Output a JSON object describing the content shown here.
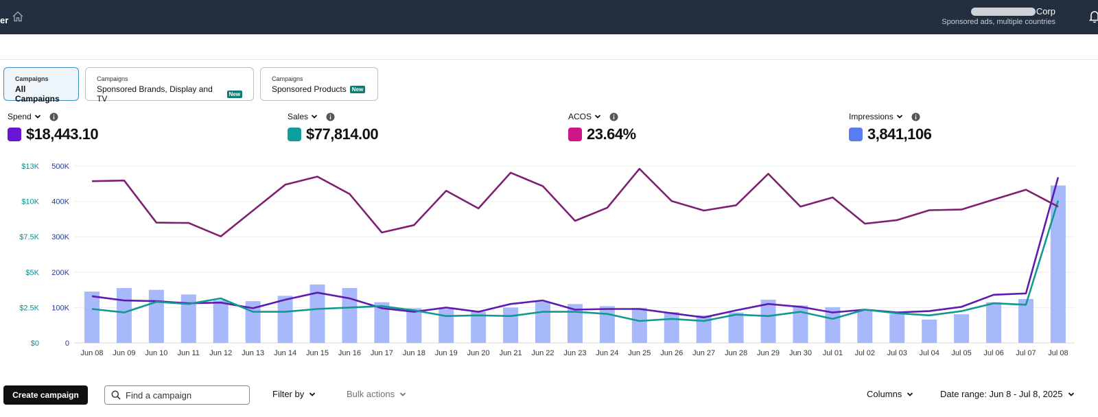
{
  "header": {
    "brand_fragment": "er",
    "account_name": "Corp",
    "account_sub": "Sponsored ads, multiple countries"
  },
  "tabs": [
    {
      "caption": "Campaigns",
      "label": "All Campaigns",
      "badge": ""
    },
    {
      "caption": "Campaigns",
      "label": "Sponsored Brands, Display and TV",
      "badge": "New"
    },
    {
      "caption": "Campaigns",
      "label": "Sponsored Products",
      "badge": "New"
    }
  ],
  "metrics": [
    {
      "label": "Spend",
      "value": "$18,443.10",
      "color": "#6a14d6"
    },
    {
      "label": "Sales",
      "value": "$77,814.00",
      "color": "#0d9e9e"
    },
    {
      "label": "ACOS",
      "value": "23.64%",
      "color": "#cc1587"
    },
    {
      "label": "Impressions",
      "value": "3,841,106",
      "color": "#5c7cf2"
    }
  ],
  "chart_data": {
    "type": "bar",
    "categories": [
      "Jun 08",
      "Jun 09",
      "Jun 10",
      "Jun 11",
      "Jun 12",
      "Jun 13",
      "Jun 14",
      "Jun 15",
      "Jun 16",
      "Jun 17",
      "Jun 18",
      "Jun 19",
      "Jun 20",
      "Jun 21",
      "Jun 22",
      "Jun 23",
      "Jun 24",
      "Jun 25",
      "Jun 26",
      "Jun 27",
      "Jun 28",
      "Jun 29",
      "Jun 30",
      "Jul 01",
      "Jul 02",
      "Jul 03",
      "Jul 04",
      "Jul 05",
      "Jul 06",
      "Jul 07",
      "Jul 08"
    ],
    "left_axis": {
      "ticks": [
        "$0",
        "$2.5K",
        "$5K",
        "$7.5K",
        "$10K",
        "$13K"
      ],
      "ylim": [
        0,
        12500
      ],
      "color": "#0a8f8f"
    },
    "right_axis": {
      "ticks": [
        "0",
        "100K",
        "200K",
        "300K",
        "400K",
        "500K"
      ],
      "ylim": [
        0,
        500000
      ],
      "color": "#233a8f"
    },
    "series": [
      {
        "type": "bar",
        "axis": "impressions",
        "color": "#a7b9fb",
        "values": [
          145000,
          155000,
          150000,
          137000,
          120000,
          118000,
          133000,
          165000,
          155000,
          115000,
          98000,
          96000,
          88000,
          100000,
          116000,
          110000,
          104000,
          99000,
          87000,
          78000,
          86000,
          122000,
          106000,
          101000,
          95000,
          82000,
          66000,
          81000,
          115000,
          124000,
          445000
        ]
      },
      {
        "type": "line",
        "axis": "money",
        "color": "#5e1bb1",
        "values": [
          3300,
          3000,
          2950,
          2800,
          2850,
          2450,
          3050,
          3550,
          3150,
          2450,
          2200,
          2500,
          2200,
          2750,
          3000,
          2350,
          2400,
          2400,
          2100,
          1800,
          2300,
          2750,
          2550,
          2150,
          2350,
          2150,
          2250,
          2550,
          3400,
          3500,
          11700
        ]
      },
      {
        "type": "line",
        "axis": "money",
        "color": "#12998f",
        "values": [
          2400,
          2150,
          2900,
          2750,
          3150,
          2200,
          2200,
          2400,
          2500,
          2600,
          2300,
          1900,
          1950,
          1900,
          2200,
          2200,
          2050,
          1550,
          1700,
          1550,
          2000,
          1900,
          2200,
          1700,
          2350,
          2100,
          1950,
          2250,
          2800,
          2700,
          10050
        ]
      },
      {
        "type": "line",
        "axis": "acos",
        "color": "#7d2070",
        "values": [
          457,
          459,
          340,
          339,
          301,
          374,
          447,
          470,
          421,
          312,
          333,
          430,
          380,
          481,
          443,
          345,
          382,
          492,
          401,
          374,
          389,
          478,
          385,
          411,
          337,
          347,
          375,
          377,
          405,
          433,
          385
        ]
      }
    ]
  },
  "toolbar": {
    "create_label": "Create campaign",
    "search_placeholder": "Find a campaign",
    "filter_label": "Filter by",
    "bulk_label": "Bulk actions",
    "columns_label": "Columns",
    "date_label": "Date range: Jun 8 - Jul 8, 2025"
  }
}
